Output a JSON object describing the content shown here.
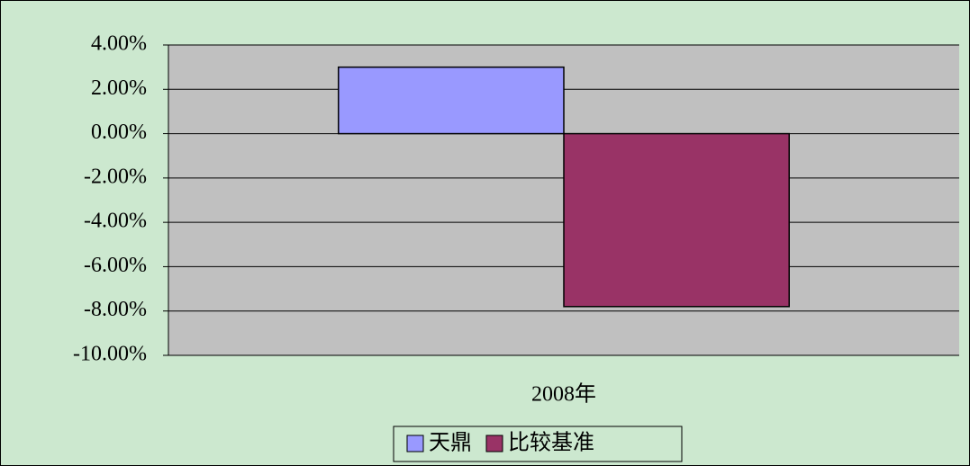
{
  "chart_data": {
    "type": "bar",
    "categories": [
      "2008年"
    ],
    "series": [
      {
        "name": "天鼎",
        "color": "#9999ff",
        "values": [
          3.0
        ]
      },
      {
        "name": "比较基准",
        "color": "#993366",
        "values": [
          -7.8
        ]
      }
    ],
    "ylim": [
      -10,
      4
    ],
    "yticks": [
      {
        "value": -10,
        "label": "-10.00%"
      },
      {
        "value": -8,
        "label": "-8.00%"
      },
      {
        "value": -6,
        "label": "-6.00%"
      },
      {
        "value": -4,
        "label": "-4.00%"
      },
      {
        "value": -2,
        "label": "-2.00%"
      },
      {
        "value": 0,
        "label": "0.00%"
      },
      {
        "value": 2,
        "label": "2.00%"
      },
      {
        "value": 4,
        "label": "4.00%"
      }
    ],
    "grid": true,
    "legend": "bottom"
  }
}
